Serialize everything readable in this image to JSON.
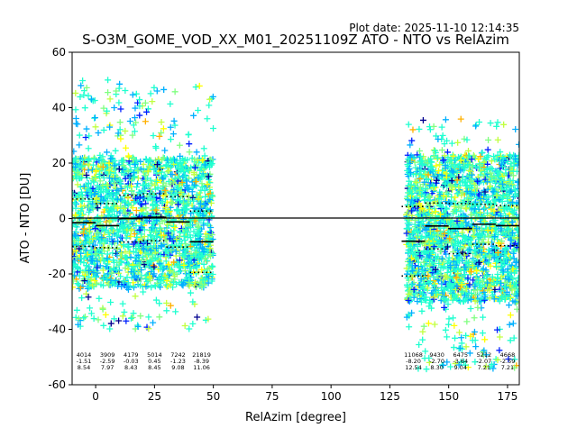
{
  "chart_data": {
    "type": "scatter",
    "title": "S-O3M_GOME_VOD_XX_M01_20251109Z ATO - NTO vs RelAzim",
    "subtitle": "Plot date: 2025-11-10 12:14:35",
    "xlabel": "RelAzim [degree]",
    "ylabel": "ATO - NTO [DU]",
    "xlim": [
      -10,
      180
    ],
    "ylim": [
      -60,
      60
    ],
    "xticks": [
      0,
      25,
      50,
      75,
      100,
      125,
      150,
      175
    ],
    "yticks": [
      -60,
      -40,
      -20,
      0,
      20,
      40,
      60
    ],
    "grid": false,
    "marker": "+",
    "colors": [
      "#00008f",
      "#0020ff",
      "#00b0ff",
      "#20ffd0",
      "#80ff80",
      "#c0ff40",
      "#ffff00",
      "#ffb000"
    ],
    "clusters": [
      {
        "x": [
          -10,
          50
        ],
        "y_core": [
          -25,
          22
        ],
        "y_extreme": [
          -40,
          50
        ]
      },
      {
        "x": [
          132,
          180
        ],
        "y_core": [
          -30,
          23
        ],
        "y_extreme": [
          -55,
          36
        ]
      }
    ],
    "bins": [
      {
        "x": -5,
        "count": "4014",
        "mean": "-1.51",
        "std": "8.54"
      },
      {
        "x": 5,
        "count": "3909",
        "mean": "-2.59",
        "std": "7.97"
      },
      {
        "x": 15,
        "count": "4179",
        "mean": "-0.03",
        "std": "8.43"
      },
      {
        "x": 25,
        "count": "5014",
        "mean": "0.45",
        "std": "8.45"
      },
      {
        "x": 35,
        "count": "7242",
        "mean": "-1.23",
        "std": "9.08"
      },
      {
        "x": 45,
        "count": "21819",
        "mean": "-8.39",
        "std": "11.06"
      },
      {
        "x": 135,
        "count": "11068",
        "mean": "-8.20",
        "std": "12.54"
      },
      {
        "x": 145,
        "count": "9430",
        "mean": "-2.70",
        "std": "8.30"
      },
      {
        "x": 155,
        "count": "6475",
        "mean": "-3.64",
        "std": "9.04"
      },
      {
        "x": 165,
        "count": "5212",
        "mean": "-2.07",
        "std": "7.21"
      },
      {
        "x": 175,
        "count": "4668",
        "mean": "-2.59",
        "std": "7.21"
      }
    ]
  }
}
